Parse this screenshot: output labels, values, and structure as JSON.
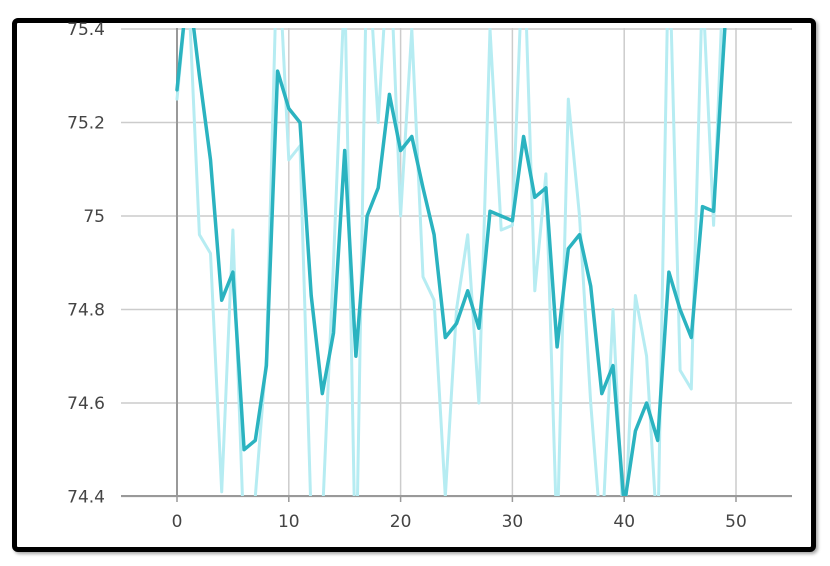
{
  "chart_data": {
    "type": "line",
    "title": "",
    "xlabel": "",
    "ylabel": "",
    "xlim": [
      0,
      55
    ],
    "ylim": [
      74.4,
      75.4
    ],
    "x_ticks": [
      "0",
      "10",
      "20",
      "30",
      "40",
      "50"
    ],
    "y_ticks": [
      "74.4",
      "74.6",
      "74.8",
      "75",
      "75.2",
      "75.4"
    ],
    "grid": true,
    "legend": "none",
    "colors": {
      "raw": "#b6ecf2",
      "smoothed": "#2bb3c0",
      "grid": "#cccccc",
      "axis": "#999999"
    },
    "series": [
      {
        "role": "raw",
        "x": [
          0,
          1,
          2,
          3,
          4,
          5,
          6,
          7,
          8,
          9,
          10,
          11,
          12,
          13,
          14,
          15,
          16,
          17,
          18,
          19,
          20,
          21,
          22,
          23,
          24,
          25,
          26,
          27,
          28,
          29,
          30,
          31,
          32,
          33,
          34,
          35,
          36,
          37,
          38,
          39,
          40,
          41,
          42,
          43,
          44,
          45,
          46,
          47,
          48,
          49
        ],
        "values": [
          75.25,
          75.5,
          74.96,
          74.92,
          74.41,
          74.97,
          74.3,
          74.4,
          74.7,
          75.6,
          75.12,
          75.15,
          74.35,
          74.35,
          74.9,
          75.5,
          74.2,
          75.6,
          75.2,
          75.6,
          75.0,
          75.4,
          74.87,
          74.82,
          74.4,
          74.8,
          74.96,
          74.6,
          75.4,
          74.97,
          74.98,
          75.6,
          74.84,
          75.09,
          74.3,
          75.25,
          75.0,
          74.6,
          74.3,
          74.8,
          74.3,
          74.83,
          74.7,
          74.3,
          75.6,
          74.67,
          74.63,
          75.5,
          74.98,
          75.6
        ]
      },
      {
        "role": "smoothed",
        "x": [
          0,
          1,
          2,
          3,
          4,
          5,
          6,
          7,
          8,
          9,
          10,
          11,
          12,
          13,
          14,
          15,
          16,
          17,
          18,
          19,
          20,
          21,
          22,
          23,
          24,
          25,
          26,
          27,
          28,
          29,
          30,
          31,
          32,
          33,
          34,
          35,
          36,
          37,
          38,
          39,
          40,
          41,
          42,
          43,
          44,
          45,
          46,
          47,
          48,
          49
        ],
        "values": [
          75.27,
          75.5,
          75.3,
          75.12,
          74.82,
          74.88,
          74.5,
          74.52,
          74.68,
          75.31,
          75.23,
          75.2,
          74.83,
          74.62,
          74.75,
          75.14,
          74.7,
          75.0,
          75.06,
          75.26,
          75.14,
          75.17,
          75.06,
          74.96,
          74.74,
          74.77,
          74.84,
          74.76,
          75.01,
          75.0,
          74.99,
          75.17,
          75.04,
          75.06,
          74.72,
          74.93,
          74.96,
          74.85,
          74.62,
          74.68,
          74.38,
          74.54,
          74.6,
          74.52,
          74.88,
          74.8,
          74.74,
          75.02,
          75.01,
          75.4
        ]
      }
    ]
  }
}
